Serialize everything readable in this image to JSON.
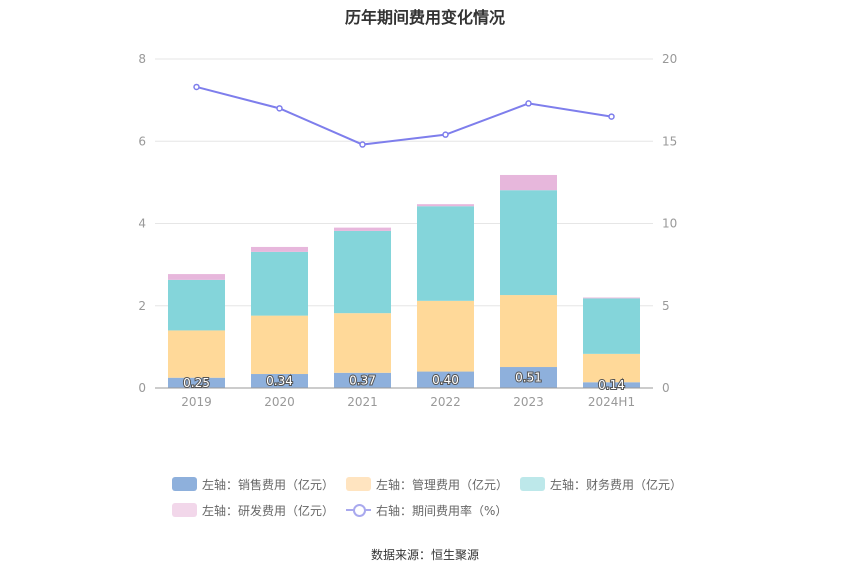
{
  "chart_data": {
    "type": "bar",
    "title": "历年期间费用变化情况",
    "categories": [
      "2019",
      "2020",
      "2021",
      "2022",
      "2023",
      "2024H1"
    ],
    "stacked": true,
    "series": [
      {
        "name": "左轴：销售费用（亿元）",
        "axis": "left",
        "color": "#8eb0dc",
        "values": [
          0.25,
          0.34,
          0.37,
          0.4,
          0.51,
          0.14
        ],
        "labels": [
          "0.25",
          "0.34",
          "0.37",
          "0.40",
          "0.51",
          "0.14"
        ]
      },
      {
        "name": "左轴：管理费用（亿元）",
        "axis": "left",
        "color": "#ffd999",
        "values": [
          1.15,
          1.42,
          1.45,
          1.72,
          1.75,
          0.69
        ]
      },
      {
        "name": "左轴：财务费用（亿元）",
        "axis": "left",
        "color": "#84d5da",
        "values": [
          1.23,
          1.55,
          2.0,
          2.3,
          2.55,
          1.35
        ]
      },
      {
        "name": "左轴：研发费用（亿元）",
        "axis": "left",
        "color": "#e7b7dc",
        "values": [
          0.14,
          0.12,
          0.08,
          0.05,
          0.37,
          0.02
        ]
      }
    ],
    "line_series": {
      "name": "右轴：期间费用率（%）",
      "axis": "right",
      "color": "#7e7eec",
      "values": [
        18.3,
        17.0,
        14.8,
        15.4,
        17.3,
        16.5
      ]
    },
    "y_left": {
      "min": 0,
      "max": 8,
      "ticks": [
        "0",
        "2",
        "4",
        "6",
        "8"
      ]
    },
    "y_right": {
      "min": 0,
      "max": 20,
      "ticks": [
        "0",
        "5",
        "10",
        "15",
        "20"
      ]
    },
    "legend_position": "bottom"
  },
  "legend": {
    "row1": [
      "左轴：销售费用（亿元）",
      "左轴：管理费用（亿元）",
      "左轴：财务费用（亿元）"
    ],
    "row2": [
      "左轴：研发费用（亿元）",
      "右轴：期间费用率（%）"
    ],
    "swatch_colors": [
      "#8eb0dc",
      "#ffe4c0",
      "#bde8ea",
      "#f2d7ea"
    ]
  },
  "source": "数据来源：恒生聚源"
}
